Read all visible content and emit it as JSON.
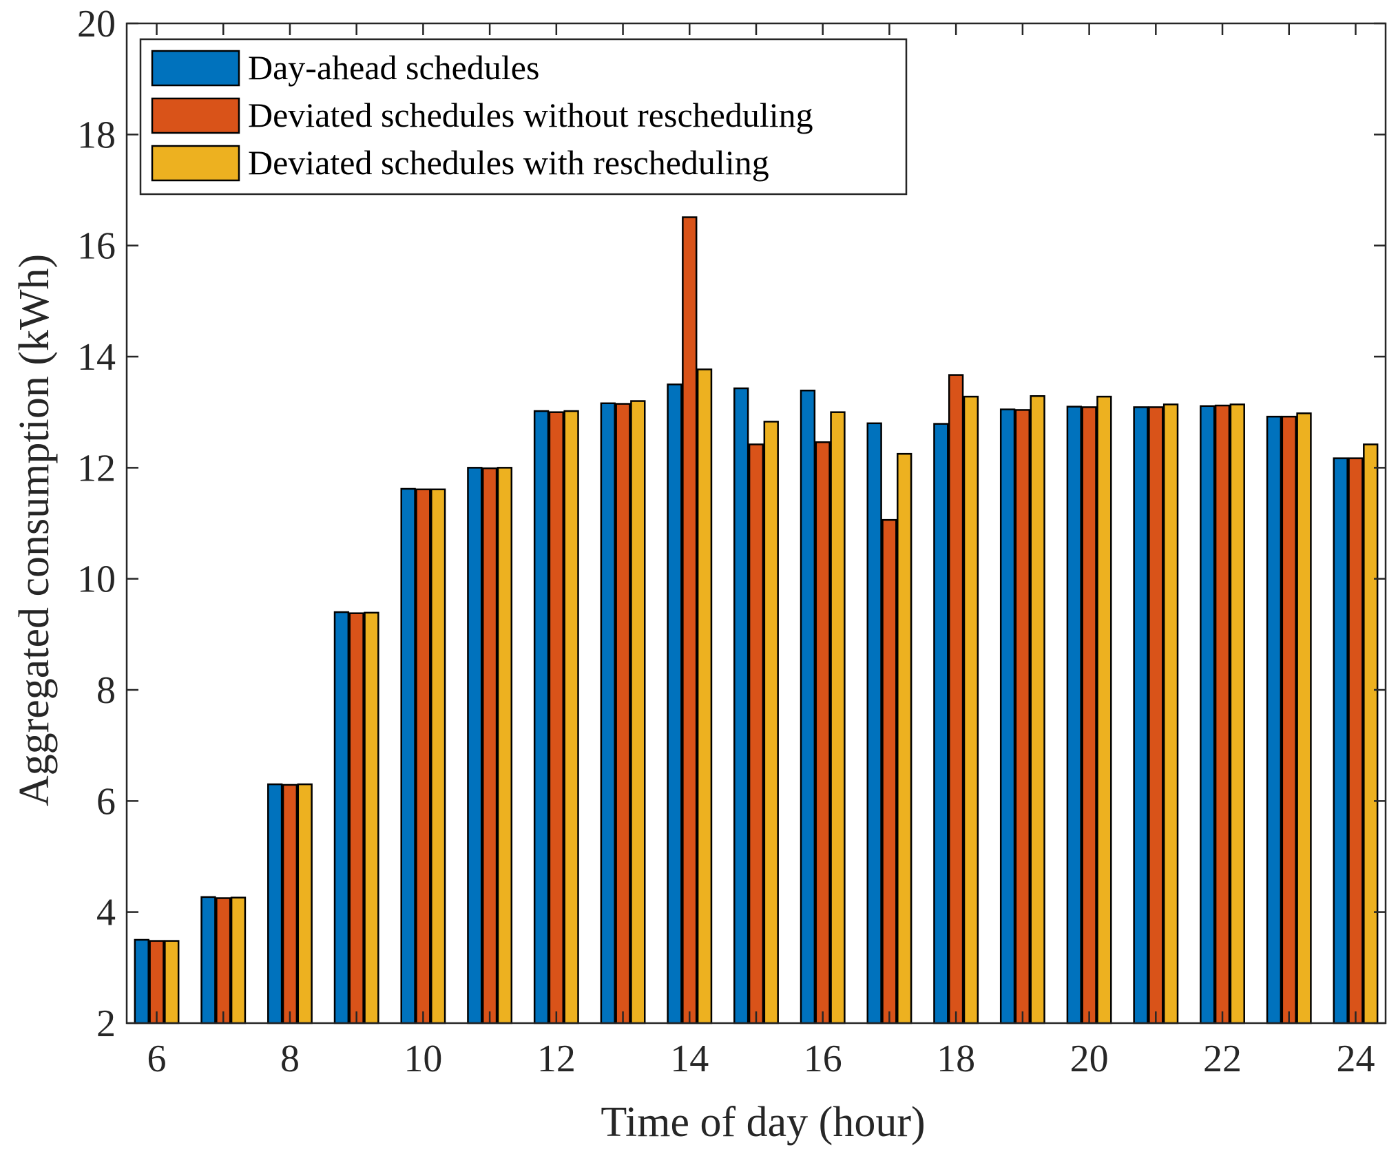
{
  "chart_data": {
    "type": "bar",
    "title": "",
    "xlabel": "Time of day (hour)",
    "ylabel": "Aggregated consumption (kWh)",
    "xlim": [
      5.55,
      24.45
    ],
    "ylim": [
      2,
      20
    ],
    "xticks": [
      6,
      8,
      10,
      12,
      14,
      16,
      18,
      20,
      22,
      24
    ],
    "yticks": [
      2,
      4,
      6,
      8,
      10,
      12,
      14,
      16,
      18,
      20
    ],
    "legend_position": "top-left",
    "categories": [
      6,
      7,
      8,
      9,
      10,
      11,
      12,
      13,
      14,
      15,
      16,
      17,
      18,
      19,
      20,
      21,
      22,
      23,
      24
    ],
    "series": [
      {
        "name": "Day-ahead schedules",
        "color": "#0072BD",
        "values": [
          3.5,
          4.27,
          6.3,
          9.4,
          11.62,
          12.0,
          13.02,
          13.16,
          13.5,
          13.43,
          13.39,
          12.8,
          12.79,
          13.05,
          13.1,
          13.09,
          13.11,
          12.92,
          12.17
        ]
      },
      {
        "name": "Deviated schedules without rescheduling",
        "color": "#D95319",
        "values": [
          3.48,
          4.25,
          6.29,
          9.38,
          11.61,
          11.99,
          13.0,
          13.15,
          16.51,
          12.42,
          12.46,
          11.06,
          13.67,
          13.04,
          13.09,
          13.09,
          13.12,
          12.92,
          12.17
        ]
      },
      {
        "name": "Deviated schedules with rescheduling",
        "color": "#EDB120",
        "values": [
          3.48,
          4.26,
          6.3,
          9.39,
          11.61,
          12.0,
          13.02,
          13.2,
          13.77,
          12.83,
          13.0,
          12.25,
          13.28,
          13.29,
          13.28,
          13.14,
          13.14,
          12.98,
          12.42
        ]
      }
    ]
  }
}
